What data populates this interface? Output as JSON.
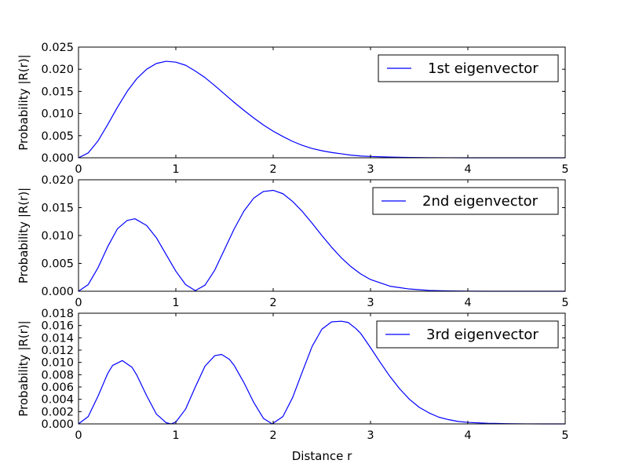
{
  "chart_data": [
    {
      "type": "line",
      "ylabel": "Probability |R(r)|",
      "ylim": [
        0,
        0.025
      ],
      "yticks": [
        "0.000",
        "0.005",
        "0.010",
        "0.015",
        "0.020",
        "0.025"
      ],
      "xlim": [
        0,
        5
      ],
      "xticks": [
        "0",
        "1",
        "2",
        "3",
        "4",
        "5"
      ],
      "legend_position": "upper right",
      "grid": false,
      "series": [
        {
          "name": "1st eigenvector",
          "color": "#0000ff",
          "x": [
            0,
            0.1,
            0.2,
            0.3,
            0.4,
            0.5,
            0.6,
            0.7,
            0.8,
            0.9,
            1.0,
            1.1,
            1.2,
            1.3,
            1.4,
            1.5,
            1.6,
            1.7,
            1.8,
            1.9,
            2.0,
            2.1,
            2.2,
            2.3,
            2.4,
            2.5,
            2.6,
            2.7,
            2.8,
            2.9,
            3.0,
            3.2,
            3.4,
            3.6,
            3.8,
            4.0,
            4.2,
            4.4,
            4.6,
            4.8,
            5.0
          ],
          "y": [
            0.0,
            0.0011,
            0.0038,
            0.0075,
            0.0114,
            0.015,
            0.0179,
            0.02,
            0.0213,
            0.0218,
            0.0216,
            0.0209,
            0.0196,
            0.0181,
            0.0163,
            0.0144,
            0.0125,
            0.0107,
            0.009,
            0.0074,
            0.006,
            0.0048,
            0.0037,
            0.0028,
            0.0021,
            0.0016,
            0.0012,
            0.0009,
            0.0006,
            0.0004,
            0.0003,
            0.00015,
            7e-05,
            3e-05,
            1e-05,
            0.0,
            0.0,
            0.0,
            0.0,
            0.0,
            0.0
          ]
        }
      ]
    },
    {
      "type": "line",
      "ylabel": "Probability |R(r)|",
      "ylim": [
        0,
        0.02
      ],
      "yticks": [
        "0.000",
        "0.005",
        "0.010",
        "0.015",
        "0.020"
      ],
      "xlim": [
        0,
        5
      ],
      "xticks": [
        "0",
        "1",
        "2",
        "3",
        "4",
        "5"
      ],
      "legend_position": "upper right",
      "grid": false,
      "series": [
        {
          "name": "2nd eigenvector",
          "color": "#0000ff",
          "x": [
            0,
            0.1,
            0.2,
            0.3,
            0.4,
            0.5,
            0.58,
            0.7,
            0.8,
            0.9,
            1.0,
            1.1,
            1.2,
            1.3,
            1.4,
            1.5,
            1.6,
            1.7,
            1.8,
            1.9,
            2.0,
            2.1,
            2.2,
            2.3,
            2.4,
            2.5,
            2.6,
            2.7,
            2.8,
            2.9,
            3.0,
            3.2,
            3.4,
            3.6,
            3.8,
            4.0,
            4.2,
            4.4,
            4.6,
            4.8,
            5.0
          ],
          "y": [
            0.0,
            0.0012,
            0.0042,
            0.008,
            0.0112,
            0.0127,
            0.013,
            0.0118,
            0.0096,
            0.0066,
            0.0036,
            0.0012,
            0.0001,
            0.0011,
            0.0038,
            0.0075,
            0.0112,
            0.0144,
            0.0167,
            0.0179,
            0.0181,
            0.0175,
            0.0161,
            0.0143,
            0.0122,
            0.01,
            0.0079,
            0.006,
            0.0044,
            0.0031,
            0.0021,
            0.0009,
            0.0004,
            0.00015,
            5e-05,
            2e-05,
            0.0,
            0.0,
            0.0,
            0.0,
            0.0
          ]
        }
      ]
    },
    {
      "type": "line",
      "ylabel": "Probability |R(r)|",
      "xlabel": "Distance r",
      "ylim": [
        0,
        0.018
      ],
      "yticks": [
        "0.000",
        "0.002",
        "0.004",
        "0.006",
        "0.008",
        "0.010",
        "0.012",
        "0.014",
        "0.016",
        "0.018"
      ],
      "xlim": [
        0,
        5
      ],
      "xticks": [
        "0",
        "1",
        "2",
        "3",
        "4",
        "5"
      ],
      "legend_position": "upper right",
      "grid": false,
      "series": [
        {
          "name": "3rd eigenvector",
          "color": "#0000ff",
          "x": [
            0,
            0.1,
            0.2,
            0.3,
            0.35,
            0.45,
            0.55,
            0.6,
            0.7,
            0.8,
            0.9,
            0.95,
            1.0,
            1.1,
            1.2,
            1.3,
            1.4,
            1.47,
            1.55,
            1.6,
            1.7,
            1.8,
            1.9,
            1.99,
            2.1,
            2.2,
            2.3,
            2.4,
            2.5,
            2.6,
            2.7,
            2.77,
            2.85,
            2.9,
            3.0,
            3.1,
            3.2,
            3.3,
            3.4,
            3.5,
            3.6,
            3.7,
            3.8,
            3.9,
            4.0,
            4.2,
            4.4,
            4.6,
            4.8,
            5.0
          ],
          "y": [
            0.0,
            0.0012,
            0.0045,
            0.0082,
            0.0095,
            0.0103,
            0.0092,
            0.0079,
            0.0046,
            0.0016,
            0.0002,
            0.0,
            0.0003,
            0.0024,
            0.006,
            0.0094,
            0.0111,
            0.0113,
            0.0105,
            0.0095,
            0.0067,
            0.0035,
            0.0009,
            0.0,
            0.0012,
            0.0043,
            0.0085,
            0.0126,
            0.0154,
            0.0166,
            0.0167,
            0.0165,
            0.0155,
            0.0147,
            0.0124,
            0.01,
            0.0077,
            0.0057,
            0.004,
            0.0027,
            0.0018,
            0.0011,
            0.0007,
            0.0004,
            0.00025,
            0.0001,
            4e-05,
            1e-05,
            0.0,
            0.0
          ]
        }
      ]
    }
  ]
}
